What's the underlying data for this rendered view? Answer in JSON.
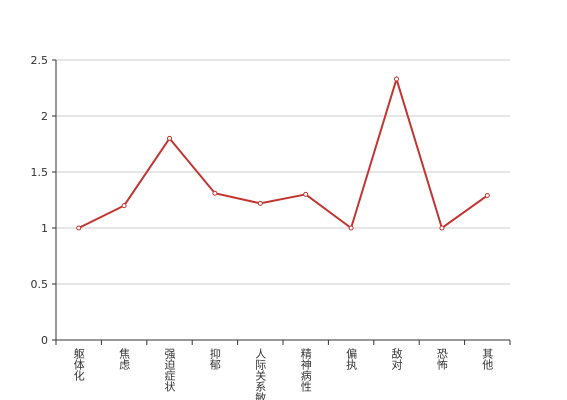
{
  "chart_data": {
    "type": "line",
    "categories": [
      "躯体化",
      "焦虑",
      "强迫症状",
      "抑郁",
      "人际关系敏感",
      "精神病性",
      "偏执",
      "敌对",
      "恐怖",
      "其他"
    ],
    "values": [
      1.0,
      1.2,
      1.8,
      1.31,
      1.22,
      1.3,
      1.0,
      2.33,
      1.0,
      1.29
    ],
    "color": "#c23531",
    "ylim": [
      0,
      2.5
    ],
    "yticks": [
      0,
      0.5,
      1,
      1.5,
      2,
      2.5
    ],
    "grid": true
  }
}
